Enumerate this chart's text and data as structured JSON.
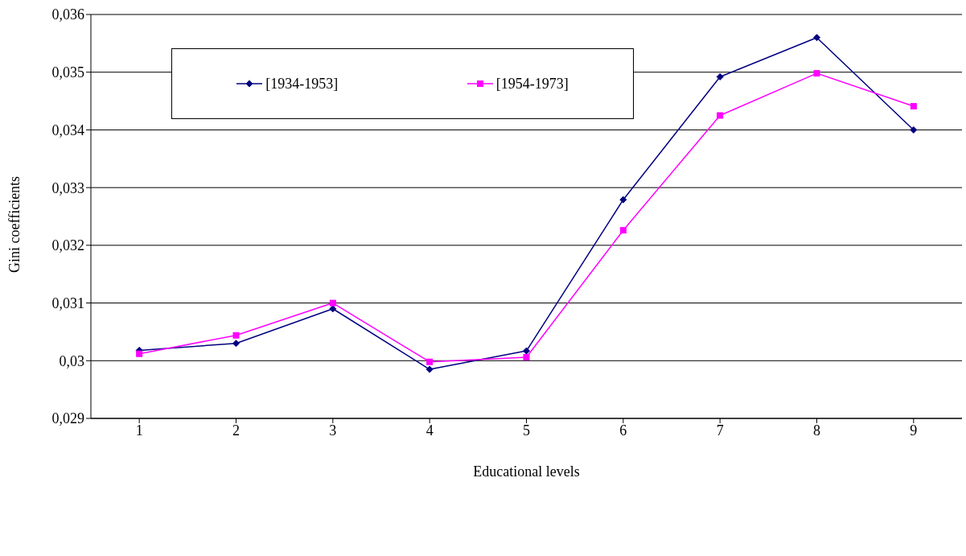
{
  "chart_data": {
    "type": "line",
    "xlabel": "Educational levels",
    "ylabel": "Gini coefficients",
    "categories": [
      "1",
      "2",
      "3",
      "4",
      "5",
      "6",
      "7",
      "8",
      "9"
    ],
    "series": [
      {
        "name": "[1934-1953]",
        "color": "#000080",
        "marker": "diamond",
        "values": [
          0.03018,
          0.0303,
          0.0309,
          0.02985,
          0.03017,
          0.03279,
          0.03492,
          0.0356,
          0.034
        ]
      },
      {
        "name": "[1954-1973]",
        "color": "#ff00ff",
        "marker": "square",
        "values": [
          0.03012,
          0.03044,
          0.031,
          0.02998,
          0.03006,
          0.03226,
          0.03425,
          0.03498,
          0.03441
        ]
      }
    ],
    "ylim": [
      0.029,
      0.036
    ],
    "yticks": [
      {
        "value": 0.029,
        "label": "0,029"
      },
      {
        "value": 0.03,
        "label": "0,03"
      },
      {
        "value": 0.031,
        "label": "0,031"
      },
      {
        "value": 0.032,
        "label": "0,032"
      },
      {
        "value": 0.033,
        "label": "0,033"
      },
      {
        "value": 0.034,
        "label": "0,034"
      },
      {
        "value": 0.035,
        "label": "0,035"
      },
      {
        "value": 0.036,
        "label": "0,036"
      }
    ],
    "grid": "y",
    "legend": "top left",
    "line_style": "solid"
  }
}
